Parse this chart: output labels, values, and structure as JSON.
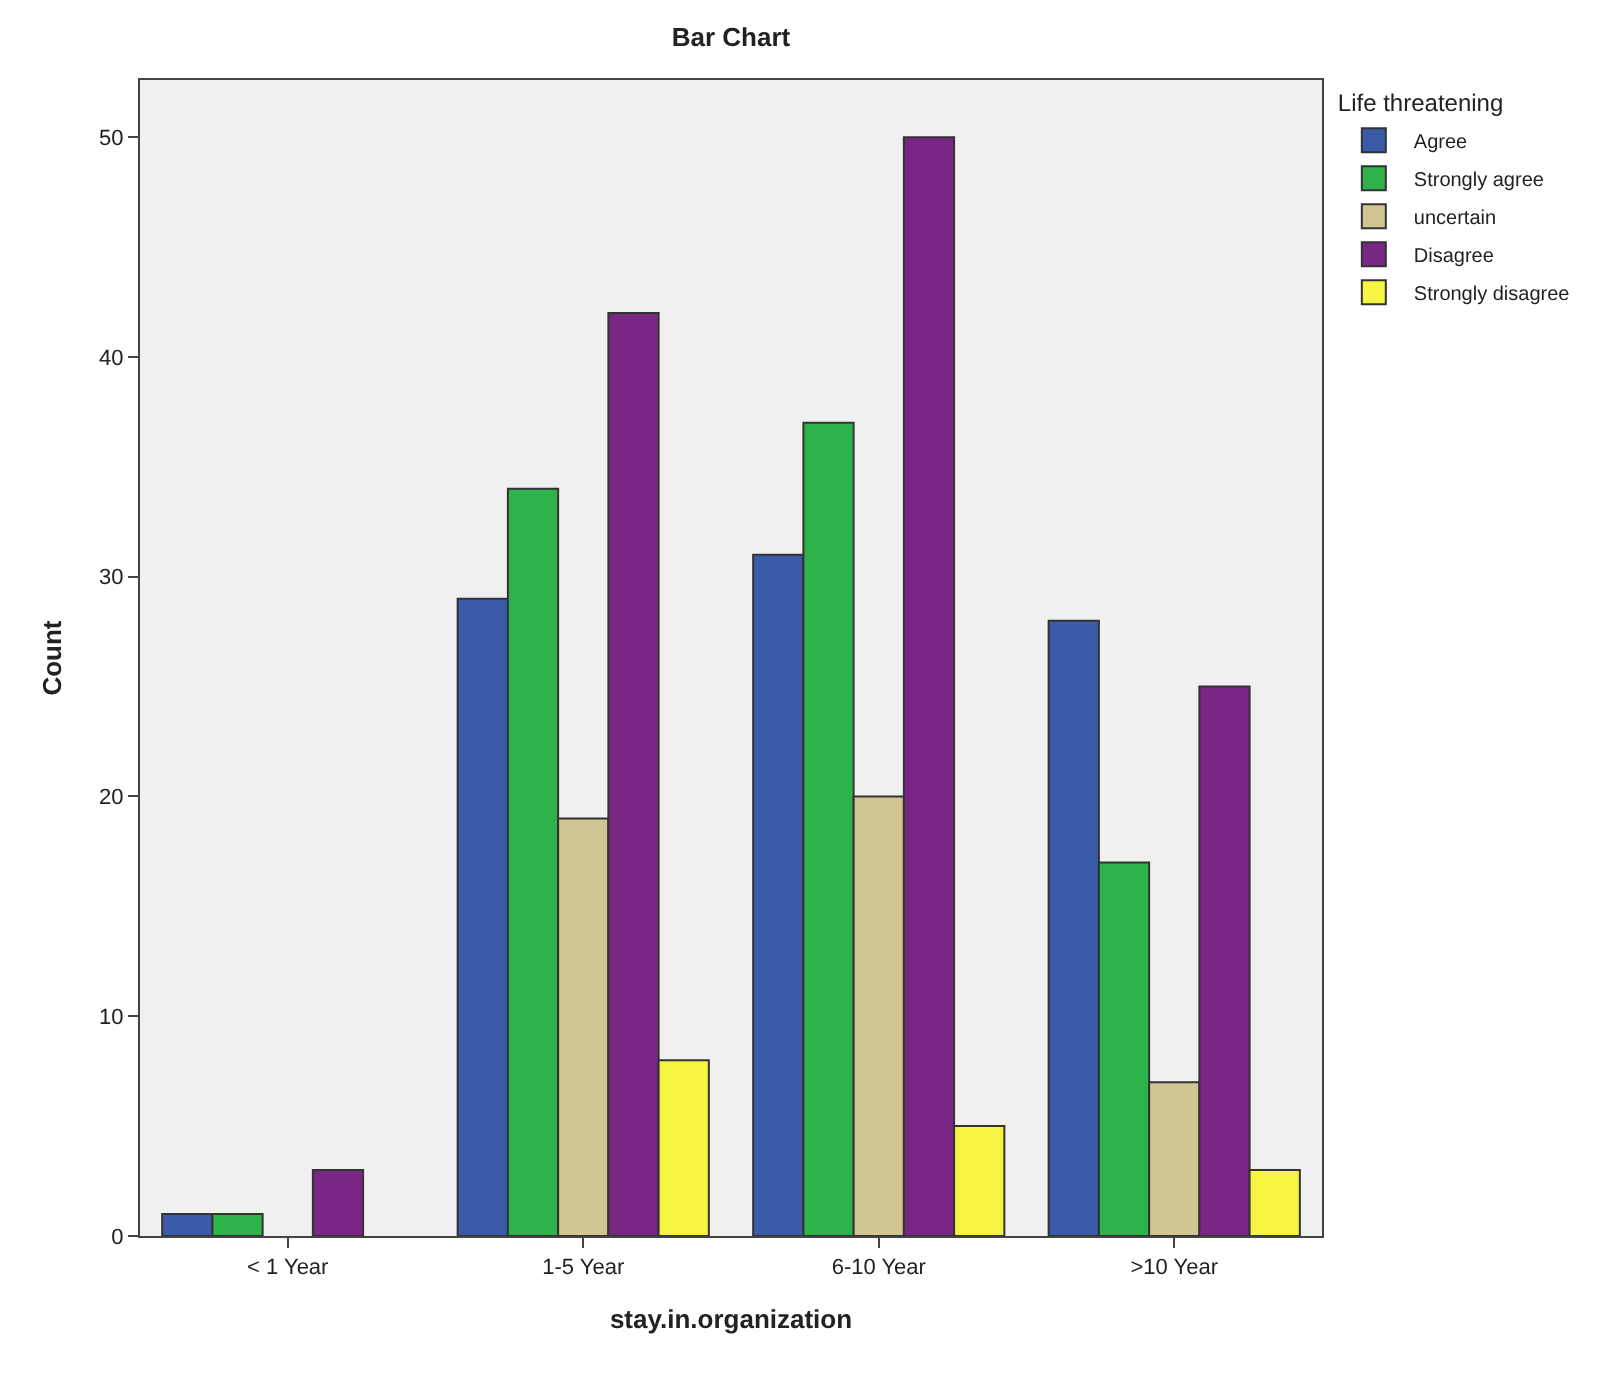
{
  "chart_data": {
    "type": "bar",
    "title": "Bar Chart",
    "xlabel": "stay.in.organization",
    "ylabel": "Count",
    "legend_title": "Life threatening",
    "categories": [
      "< 1 Year",
      "1-5 Year",
      "6-10 Year",
      ">10 Year"
    ],
    "series": [
      {
        "name": "Agree",
        "color": "#3a5ba8",
        "values": [
          1,
          29,
          31,
          28
        ]
      },
      {
        "name": "Strongly agree",
        "color": "#2db34a",
        "values": [
          1,
          34,
          37,
          17
        ]
      },
      {
        "name": "uncertain",
        "color": "#d2c594",
        "values": [
          null,
          19,
          20,
          7
        ]
      },
      {
        "name": "Disagree",
        "color": "#7a2684",
        "values": [
          3,
          42,
          50,
          25
        ]
      },
      {
        "name": "Strongly disagree",
        "color": "#f5f542",
        "values": [
          null,
          8,
          5,
          3
        ]
      }
    ],
    "ylim": [
      0,
      52.6
    ],
    "yticks": [
      0,
      10,
      20,
      30,
      40,
      50
    ],
    "grid": false,
    "legend": "top right"
  }
}
